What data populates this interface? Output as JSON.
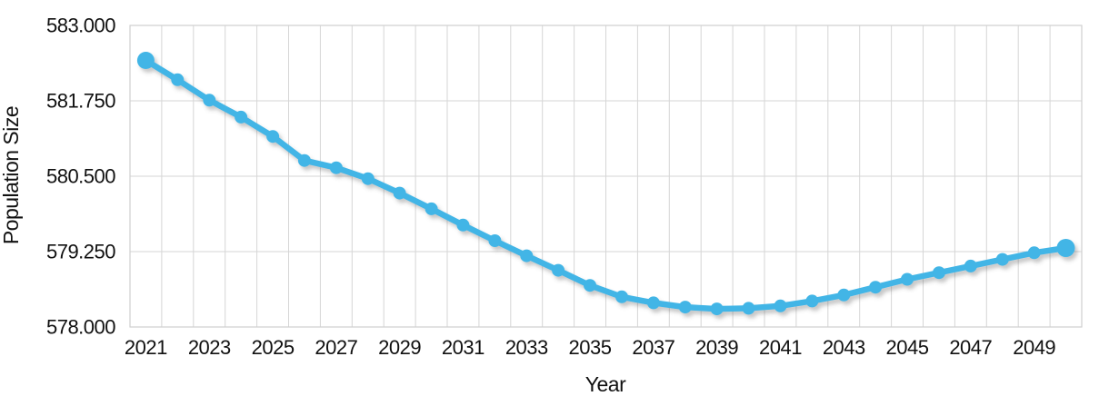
{
  "chart_data": {
    "type": "line",
    "title": "",
    "xlabel": "Year",
    "ylabel": "Population Size",
    "x": [
      2021,
      2022,
      2023,
      2024,
      2025,
      2026,
      2027,
      2028,
      2029,
      2030,
      2031,
      2032,
      2033,
      2034,
      2035,
      2036,
      2037,
      2038,
      2039,
      2040,
      2041,
      2042,
      2043,
      2044,
      2045,
      2046,
      2047,
      2048,
      2049,
      2050
    ],
    "series": [
      {
        "name": "Population Size",
        "color": "#42b5e6",
        "values": [
          582420,
          582100,
          581760,
          581480,
          581160,
          580760,
          580640,
          580460,
          580220,
          579960,
          579690,
          579430,
          579180,
          578940,
          578690,
          578500,
          578400,
          578330,
          578300,
          578310,
          578350,
          578430,
          578530,
          578660,
          578790,
          578900,
          579010,
          579120,
          579230,
          579310
        ]
      }
    ],
    "ylim": [
      578000,
      583000
    ],
    "ytick_step": 1250,
    "ytick_labels": [
      "583.000",
      "581.750",
      "580.500",
      "579.250",
      "578.000"
    ],
    "xtick_labels": [
      "2021",
      "2023",
      "2025",
      "2027",
      "2029",
      "2031",
      "2033",
      "2035",
      "2037",
      "2039",
      "2041",
      "2043",
      "2045",
      "2047",
      "2049"
    ],
    "grid": "both",
    "legend": "none",
    "marker": "circle",
    "number_format": "thousands-dot"
  },
  "style": {
    "line_color": "#42b5e6",
    "grid_color": "#d6d6d6",
    "plot_border_color": "#cfcfcf",
    "axis_text_color": "#111111",
    "background": "#ffffff"
  }
}
